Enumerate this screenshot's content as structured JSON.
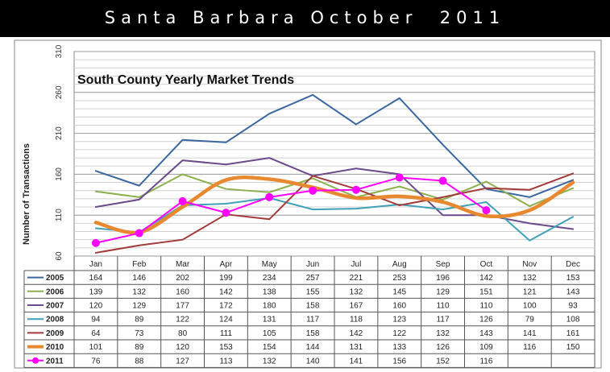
{
  "banner": {
    "title": "Santa Barbara October  2011"
  },
  "chart_data": {
    "type": "line",
    "title": "South County Yearly Market Trends",
    "xlabel": "",
    "ylabel": "Number of Transactions",
    "ylim": [
      60,
      310
    ],
    "yticks": [
      60,
      110,
      160,
      210,
      260,
      310
    ],
    "grid": true,
    "legend_placement": "table-below",
    "categories": [
      "Jan",
      "Feb",
      "Mar",
      "Apr",
      "May",
      "Jun",
      "Jul",
      "Aug",
      "Sep",
      "Oct",
      "Nov",
      "Dec"
    ],
    "series": [
      {
        "name": "2005",
        "color": "#3A67A0",
        "style": "thin",
        "values": [
          164,
          146,
          202,
          199,
          234,
          257,
          221,
          253,
          196,
          142,
          132,
          153
        ]
      },
      {
        "name": "2006",
        "color": "#8DB04F",
        "style": "thin",
        "values": [
          139,
          132,
          160,
          142,
          138,
          155,
          132,
          145,
          129,
          151,
          121,
          143
        ]
      },
      {
        "name": "2007",
        "color": "#6B4A8C",
        "style": "thin",
        "values": [
          120,
          129,
          177,
          172,
          180,
          158,
          167,
          160,
          110,
          110,
          100,
          93
        ]
      },
      {
        "name": "2008",
        "color": "#3FA0B8",
        "style": "thin",
        "values": [
          94,
          89,
          122,
          124,
          131,
          117,
          118,
          123,
          117,
          126,
          79,
          108
        ]
      },
      {
        "name": "2009",
        "color": "#A33A3A",
        "style": "thin",
        "values": [
          64,
          73,
          80,
          111,
          105,
          158,
          142,
          122,
          132,
          143,
          141,
          161
        ]
      },
      {
        "name": "2010",
        "color": "#E8892F",
        "style": "thick",
        "values": [
          101,
          89,
          120,
          153,
          154,
          144,
          131,
          133,
          126,
          109,
          116,
          150
        ]
      },
      {
        "name": "2011",
        "color": "#FF00FF",
        "style": "marker",
        "values": [
          76,
          88,
          127,
          113,
          132,
          140,
          141,
          156,
          152,
          116,
          null,
          null
        ]
      }
    ]
  }
}
